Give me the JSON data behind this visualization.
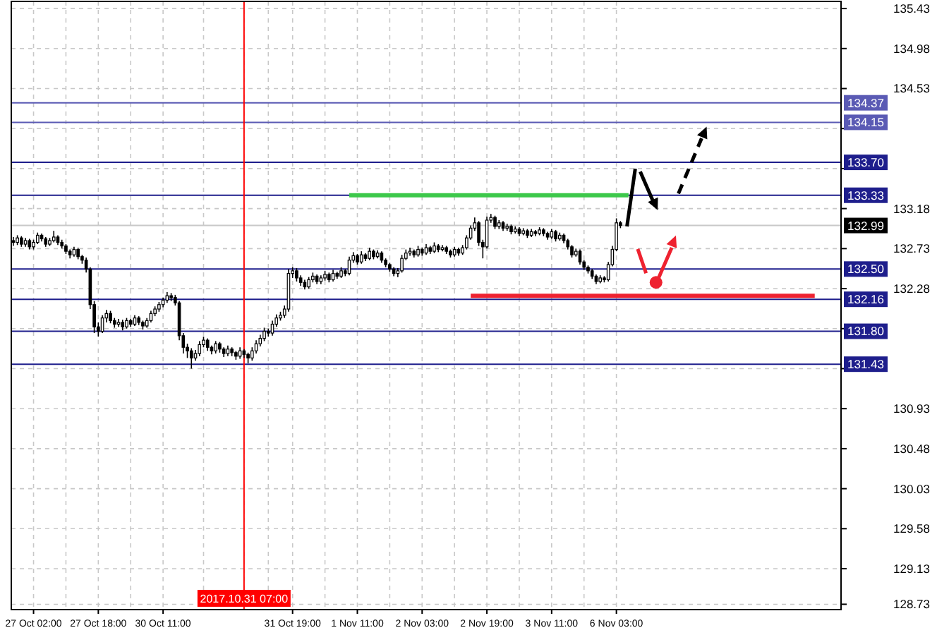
{
  "chart_data": {
    "type": "candlestick",
    "categories": [
      null,
      null,
      null,
      null,
      null,
      "27 Oct 02:00",
      null,
      null,
      null,
      null,
      null,
      null,
      null,
      null,
      null,
      null,
      null,
      null,
      null,
      null,
      null,
      "27 Oct 18:00",
      null,
      null,
      null,
      null,
      null,
      null,
      null,
      null,
      null,
      null,
      null,
      null,
      null,
      null,
      null,
      "30 Oct 11:00",
      null,
      null,
      null,
      null,
      null,
      null,
      null,
      null,
      null,
      null,
      null,
      null,
      null,
      null,
      null,
      null,
      null,
      null,
      null,
      "2017.10.31 07:00",
      null,
      null,
      null,
      null,
      null,
      null,
      null,
      null,
      null,
      null,
      null,
      "31 Oct 19:00",
      null,
      null,
      null,
      null,
      null,
      null,
      null,
      null,
      null,
      null,
      null,
      null,
      null,
      null,
      null,
      "1 Nov 11:00",
      null,
      null,
      null,
      null,
      null,
      null,
      null,
      null,
      null,
      null,
      null,
      null,
      null,
      null,
      null,
      "2 Nov 03:00",
      null,
      null,
      null,
      null,
      null,
      null,
      null,
      null,
      null,
      null,
      null,
      null,
      null,
      null,
      null,
      "2 Nov 19:00",
      null,
      null,
      null,
      null,
      null,
      null,
      null,
      null,
      null,
      null,
      null,
      null,
      null,
      null,
      null,
      "3 Nov 11:00",
      null,
      null,
      null,
      null,
      null,
      null,
      null,
      null,
      null,
      null,
      null,
      null,
      null,
      null,
      null,
      "6 Nov 03:00",
      null,
      null,
      null,
      null,
      null,
      null,
      null,
      null,
      null,
      null,
      null,
      null,
      null,
      null,
      null,
      null,
      null,
      null,
      null,
      null,
      null,
      null,
      null,
      null,
      null,
      null,
      null,
      null,
      null,
      null,
      null,
      null,
      null,
      null,
      null,
      null,
      null,
      null,
      null,
      null,
      null,
      null,
      null,
      null,
      null,
      null,
      null,
      null,
      null,
      null,
      null,
      null,
      null,
      null,
      null
    ],
    "ohlc": [
      [
        132.82,
        132.86,
        132.76,
        132.8
      ],
      [
        132.8,
        132.88,
        132.77,
        132.85
      ],
      [
        132.85,
        132.87,
        132.75,
        132.78
      ],
      [
        132.78,
        132.85,
        132.75,
        132.82
      ],
      [
        132.82,
        132.84,
        132.72,
        132.75
      ],
      [
        132.75,
        132.83,
        132.72,
        132.8
      ],
      [
        132.8,
        132.91,
        132.78,
        132.88
      ],
      [
        132.88,
        132.9,
        132.81,
        132.84
      ],
      [
        132.84,
        132.86,
        132.75,
        132.78
      ],
      [
        132.78,
        132.85,
        132.76,
        132.82
      ],
      [
        132.82,
        132.93,
        132.8,
        132.86
      ],
      [
        132.86,
        132.88,
        132.77,
        132.8
      ],
      [
        132.8,
        132.83,
        132.73,
        132.76
      ],
      [
        132.76,
        132.78,
        132.67,
        132.7
      ],
      [
        132.7,
        132.72,
        132.62,
        132.66
      ],
      [
        132.66,
        132.75,
        132.64,
        132.72
      ],
      [
        132.72,
        132.74,
        132.61,
        132.64
      ],
      [
        132.64,
        132.66,
        132.56,
        132.6
      ],
      [
        132.6,
        132.63,
        132.46,
        132.5
      ],
      [
        132.5,
        132.52,
        132.05,
        132.1
      ],
      [
        132.1,
        132.14,
        131.78,
        131.85
      ],
      [
        131.85,
        131.9,
        131.74,
        131.8
      ],
      [
        131.8,
        131.98,
        131.78,
        131.95
      ],
      [
        131.95,
        132.04,
        131.9,
        132.0
      ],
      [
        132.0,
        132.03,
        131.89,
        131.92
      ],
      [
        131.92,
        131.95,
        131.84,
        131.88
      ],
      [
        131.88,
        131.94,
        131.85,
        131.9
      ],
      [
        131.9,
        131.93,
        131.81,
        131.85
      ],
      [
        131.85,
        131.95,
        131.83,
        131.92
      ],
      [
        131.92,
        131.94,
        131.85,
        131.88
      ],
      [
        131.88,
        131.98,
        131.86,
        131.95
      ],
      [
        131.95,
        131.97,
        131.87,
        131.9
      ],
      [
        131.9,
        131.92,
        131.82,
        131.86
      ],
      [
        131.86,
        131.95,
        131.84,
        131.92
      ],
      [
        131.92,
        132.03,
        131.9,
        132.0
      ],
      [
        132.0,
        132.08,
        131.97,
        132.05
      ],
      [
        132.05,
        132.13,
        132.02,
        132.1
      ],
      [
        132.1,
        132.18,
        132.07,
        132.15
      ],
      [
        132.15,
        132.24,
        132.12,
        132.2
      ],
      [
        132.2,
        132.23,
        132.14,
        132.18
      ],
      [
        132.18,
        132.21,
        132.09,
        132.12
      ],
      [
        132.12,
        132.14,
        131.7,
        131.75
      ],
      [
        131.75,
        131.78,
        131.55,
        131.62
      ],
      [
        131.62,
        131.66,
        131.5,
        131.58
      ],
      [
        131.58,
        131.61,
        131.38,
        131.5
      ],
      [
        131.5,
        131.59,
        131.47,
        131.55
      ],
      [
        131.55,
        131.69,
        131.52,
        131.65
      ],
      [
        131.65,
        131.74,
        131.62,
        131.7
      ],
      [
        131.7,
        131.72,
        131.58,
        131.62
      ],
      [
        131.62,
        131.64,
        131.54,
        131.58
      ],
      [
        131.58,
        131.69,
        131.55,
        131.66
      ],
      [
        131.66,
        131.68,
        131.56,
        131.6
      ],
      [
        131.6,
        131.62,
        131.51,
        131.55
      ],
      [
        131.55,
        131.64,
        131.52,
        131.6
      ],
      [
        131.6,
        131.62,
        131.52,
        131.56
      ],
      [
        131.56,
        131.58,
        131.48,
        131.52
      ],
      [
        131.52,
        131.62,
        131.49,
        131.58
      ],
      [
        131.58,
        131.6,
        131.5,
        131.54
      ],
      [
        131.54,
        131.56,
        131.44,
        131.5
      ],
      [
        131.5,
        131.62,
        131.47,
        131.58
      ],
      [
        131.58,
        131.7,
        131.55,
        131.66
      ],
      [
        131.66,
        131.76,
        131.63,
        131.72
      ],
      [
        131.72,
        131.84,
        131.69,
        131.8
      ],
      [
        131.8,
        131.83,
        131.74,
        131.78
      ],
      [
        131.78,
        131.92,
        131.75,
        131.88
      ],
      [
        131.88,
        131.99,
        131.85,
        131.95
      ],
      [
        131.95,
        132.02,
        131.92,
        131.98
      ],
      [
        131.98,
        132.09,
        131.95,
        132.05
      ],
      [
        132.05,
        132.5,
        132.02,
        132.45
      ],
      [
        132.45,
        132.52,
        132.4,
        132.48
      ],
      [
        132.48,
        132.51,
        132.36,
        132.4
      ],
      [
        132.4,
        132.43,
        132.31,
        132.35
      ],
      [
        132.35,
        132.38,
        132.27,
        132.3
      ],
      [
        132.3,
        132.41,
        132.28,
        132.38
      ],
      [
        132.38,
        132.46,
        132.35,
        132.42
      ],
      [
        132.42,
        132.44,
        132.33,
        132.36
      ],
      [
        132.36,
        132.43,
        132.33,
        132.4
      ],
      [
        132.4,
        132.48,
        132.37,
        132.44
      ],
      [
        132.44,
        132.46,
        132.35,
        132.38
      ],
      [
        132.38,
        132.49,
        132.36,
        132.45
      ],
      [
        132.45,
        132.47,
        132.39,
        132.42
      ],
      [
        132.42,
        132.52,
        132.4,
        132.48
      ],
      [
        132.48,
        132.5,
        132.42,
        132.45
      ],
      [
        132.45,
        132.64,
        132.43,
        132.6
      ],
      [
        132.6,
        132.69,
        132.57,
        132.65
      ],
      [
        132.65,
        132.67,
        132.55,
        132.58
      ],
      [
        132.58,
        132.7,
        132.56,
        132.66
      ],
      [
        132.66,
        132.68,
        132.59,
        132.62
      ],
      [
        132.62,
        132.74,
        132.6,
        132.7
      ],
      [
        132.7,
        132.72,
        132.61,
        132.64
      ],
      [
        132.64,
        132.71,
        132.62,
        132.68
      ],
      [
        132.68,
        132.7,
        132.57,
        132.6
      ],
      [
        132.6,
        132.62,
        132.52,
        132.55
      ],
      [
        132.55,
        132.57,
        132.47,
        132.5
      ],
      [
        132.5,
        132.52,
        132.42,
        132.45
      ],
      [
        132.45,
        132.51,
        132.41,
        132.48
      ],
      [
        132.48,
        132.66,
        132.46,
        132.62
      ],
      [
        132.62,
        132.72,
        132.6,
        132.68
      ],
      [
        132.68,
        132.74,
        132.65,
        132.7
      ],
      [
        132.7,
        132.72,
        132.63,
        132.66
      ],
      [
        132.66,
        132.76,
        132.64,
        132.72
      ],
      [
        132.72,
        132.74,
        132.65,
        132.68
      ],
      [
        132.68,
        132.78,
        132.66,
        132.74
      ],
      [
        132.74,
        132.76,
        132.67,
        132.7
      ],
      [
        132.7,
        132.8,
        132.68,
        132.76
      ],
      [
        132.76,
        132.78,
        132.69,
        132.72
      ],
      [
        132.72,
        132.77,
        132.7,
        132.74
      ],
      [
        132.74,
        132.76,
        132.67,
        132.7
      ],
      [
        132.7,
        132.72,
        132.63,
        132.66
      ],
      [
        132.66,
        132.75,
        132.64,
        132.72
      ],
      [
        132.72,
        132.74,
        132.65,
        132.68
      ],
      [
        132.68,
        132.77,
        132.66,
        132.74
      ],
      [
        132.74,
        132.88,
        132.72,
        132.85
      ],
      [
        132.85,
        132.99,
        132.83,
        132.96
      ],
      [
        132.96,
        133.08,
        132.93,
        133.02
      ],
      [
        133.02,
        133.04,
        132.76,
        132.8
      ],
      [
        132.8,
        132.83,
        132.62,
        132.75
      ],
      [
        132.75,
        133.09,
        132.73,
        133.05
      ],
      [
        133.05,
        133.12,
        133.02,
        133.08
      ],
      [
        133.08,
        133.1,
        132.95,
        132.98
      ],
      [
        132.98,
        133.05,
        132.95,
        133.02
      ],
      [
        133.02,
        133.04,
        132.93,
        132.96
      ],
      [
        132.96,
        133.01,
        132.93,
        132.98
      ],
      [
        132.98,
        133.0,
        132.89,
        132.92
      ],
      [
        132.92,
        132.98,
        132.9,
        132.95
      ],
      [
        132.95,
        132.97,
        132.87,
        132.9
      ],
      [
        132.9,
        132.96,
        132.88,
        132.93
      ],
      [
        132.93,
        132.95,
        132.85,
        132.88
      ],
      [
        132.88,
        132.95,
        132.86,
        132.92
      ],
      [
        132.92,
        132.94,
        132.87,
        132.9
      ],
      [
        132.9,
        132.97,
        132.88,
        132.94
      ],
      [
        132.94,
        132.96,
        132.87,
        132.9
      ],
      [
        132.9,
        132.92,
        132.83,
        132.86
      ],
      [
        132.86,
        132.95,
        132.84,
        132.92
      ],
      [
        132.92,
        132.94,
        132.81,
        132.84
      ],
      [
        132.84,
        132.91,
        132.82,
        132.88
      ],
      [
        132.88,
        132.9,
        132.79,
        132.82
      ],
      [
        132.82,
        132.84,
        132.72,
        132.75
      ],
      [
        132.75,
        132.77,
        132.63,
        132.66
      ],
      [
        132.66,
        132.73,
        132.64,
        132.7
      ],
      [
        132.7,
        132.72,
        132.55,
        132.58
      ],
      [
        132.58,
        132.6,
        132.49,
        132.52
      ],
      [
        132.52,
        132.54,
        132.45,
        132.48
      ],
      [
        132.48,
        132.5,
        132.39,
        132.42
      ],
      [
        132.42,
        132.44,
        132.33,
        132.36
      ],
      [
        132.36,
        132.43,
        132.34,
        132.4
      ],
      [
        132.4,
        132.42,
        132.35,
        132.38
      ],
      [
        132.38,
        132.58,
        132.36,
        132.55
      ],
      [
        132.55,
        132.76,
        132.53,
        132.72
      ],
      [
        132.72,
        133.07,
        132.7,
        133.02
      ],
      [
        133.02,
        133.04,
        132.96,
        132.99
      ],
      null,
      null,
      null,
      null,
      null,
      null,
      null,
      null,
      null,
      null,
      null,
      null,
      null,
      null,
      null,
      null,
      null,
      null,
      null,
      null,
      null,
      null,
      null,
      null,
      null,
      null,
      null,
      null,
      null,
      null,
      null,
      null,
      null,
      null,
      null,
      null,
      null,
      null,
      null,
      null,
      null,
      null,
      null,
      null,
      null,
      null,
      null,
      null,
      null,
      null,
      null,
      null,
      null,
      null
    ],
    "series": [
      {
        "type": "line",
        "color": "#3cc84a",
        "values": [
          null,
          null,
          null,
          null,
          null,
          null,
          null,
          null,
          null,
          null,
          null,
          null,
          null,
          null,
          null,
          null,
          null,
          null,
          null,
          null,
          null,
          null,
          null,
          null,
          null,
          null,
          null,
          null,
          null,
          null,
          null,
          null,
          null,
          null,
          null,
          null,
          null,
          null,
          null,
          null,
          null,
          null,
          null,
          null,
          null,
          null,
          null,
          null,
          null,
          null,
          null,
          null,
          null,
          null,
          null,
          null,
          null,
          null,
          null,
          null,
          null,
          null,
          null,
          null,
          null,
          null,
          null,
          null,
          null,
          null,
          null,
          null,
          null,
          null,
          null,
          null,
          null,
          null,
          null,
          null,
          null,
          null,
          null,
          133.33,
          133.33,
          133.33,
          133.33,
          133.33,
          133.33,
          133.33,
          133.33,
          133.33,
          133.33,
          133.33,
          133.33,
          133.33,
          133.33,
          133.33,
          133.33,
          133.33,
          133.33,
          133.33,
          133.33,
          133.33,
          133.33,
          133.33,
          133.33,
          133.33,
          133.33,
          133.33,
          133.33,
          133.33,
          133.33,
          133.33,
          133.33,
          133.33,
          133.33,
          133.33,
          133.33,
          133.33,
          133.33,
          133.33,
          133.33,
          133.33,
          133.33,
          133.33,
          133.33,
          133.33,
          133.33,
          133.33,
          133.33,
          133.33,
          133.33,
          133.33,
          133.33,
          133.33,
          133.33,
          133.33,
          133.33,
          133.33,
          133.33,
          133.33,
          133.33,
          133.33,
          133.33,
          133.33,
          133.33,
          133.33,
          133.33,
          133.33,
          133.33,
          133.33,
          133.33,
          null,
          null,
          null,
          null,
          null,
          null,
          null,
          null,
          null,
          null,
          null,
          null,
          null,
          null,
          null,
          null,
          null,
          null,
          null,
          null,
          null,
          null,
          null,
          null,
          null,
          null,
          null,
          null,
          null,
          null,
          null,
          null,
          null,
          null,
          null,
          null,
          null,
          null,
          null,
          null,
          null,
          null,
          null,
          null,
          null,
          null,
          null,
          null,
          null,
          null,
          null,
          null
        ]
      },
      {
        "type": "line",
        "color": "#ee2230",
        "values": [
          null,
          null,
          null,
          null,
          null,
          null,
          null,
          null,
          null,
          null,
          null,
          null,
          null,
          null,
          null,
          null,
          null,
          null,
          null,
          null,
          null,
          null,
          null,
          null,
          null,
          null,
          null,
          null,
          null,
          null,
          null,
          null,
          null,
          null,
          null,
          null,
          null,
          null,
          null,
          null,
          null,
          null,
          null,
          null,
          null,
          null,
          null,
          null,
          null,
          null,
          null,
          null,
          null,
          null,
          null,
          null,
          null,
          null,
          null,
          null,
          null,
          null,
          null,
          null,
          null,
          null,
          null,
          null,
          null,
          null,
          null,
          null,
          null,
          null,
          null,
          null,
          null,
          null,
          null,
          null,
          null,
          null,
          null,
          null,
          null,
          null,
          null,
          null,
          null,
          null,
          null,
          null,
          null,
          null,
          null,
          null,
          null,
          null,
          null,
          null,
          null,
          null,
          null,
          null,
          null,
          null,
          null,
          null,
          null,
          null,
          null,
          null,
          null,
          132.2,
          132.2,
          132.2,
          132.2,
          132.2,
          132.2,
          132.2,
          132.2,
          132.2,
          132.2,
          132.2,
          132.2,
          132.2,
          132.2,
          132.2,
          132.2,
          132.2,
          132.2,
          132.2,
          132.2,
          132.2,
          132.2,
          132.2,
          132.2,
          132.2,
          132.2,
          132.2,
          132.2,
          132.2,
          132.2,
          132.2,
          132.2,
          132.2,
          132.2,
          132.2,
          132.2,
          132.2,
          132.2,
          132.2,
          132.2,
          132.2,
          132.2,
          132.2,
          132.2,
          132.2,
          132.2,
          132.2,
          132.2,
          132.2,
          132.2,
          132.2,
          132.2,
          132.2,
          132.2,
          132.2,
          132.2,
          132.2,
          132.2,
          132.2,
          132.2,
          132.2,
          132.2,
          132.2,
          132.2,
          132.2,
          132.2,
          132.2,
          132.2,
          132.2,
          132.2,
          132.2,
          132.2,
          132.2,
          132.2,
          132.2,
          132.2,
          132.2,
          132.2,
          132.2,
          132.2,
          132.2,
          132.2,
          132.2,
          132.2,
          132.2,
          132.2,
          null,
          null,
          null,
          null,
          null,
          null
        ]
      }
    ],
    "ylim": [
      128.67,
      135.51
    ],
    "yticks": [
      135.43,
      134.98,
      134.53,
      {
        "value": 134.08,
        "label": null
      },
      {
        "value": 133.63,
        "label": null
      },
      133.18,
      132.73,
      132.28,
      {
        "value": 131.83,
        "label": null
      },
      {
        "value": 131.38,
        "label": null
      },
      130.93,
      130.48,
      130.03,
      129.58,
      129.13,
      128.73
    ],
    "grid": true,
    "ref_lines": [
      {
        "axis": "y",
        "value": 134.37,
        "label": "134.37",
        "color": "#5a5ab4"
      },
      {
        "axis": "y",
        "value": 134.15,
        "label": "134.15",
        "color": "#5a5ab4"
      },
      {
        "axis": "y",
        "value": 133.7,
        "label": "133.70",
        "color": "#1e1e8c"
      },
      {
        "axis": "y",
        "value": 133.33,
        "label": "133.33",
        "color": "#1e1e8c"
      },
      {
        "axis": "y",
        "value": 132.99,
        "label": "132.99",
        "color": "#c8c8c8"
      },
      {
        "axis": "y",
        "value": 132.5,
        "label": "132.50",
        "color": "#1e1e8c"
      },
      {
        "axis": "y",
        "value": 132.16,
        "label": "132.16",
        "color": "#1e1e8c"
      },
      {
        "axis": "y",
        "value": 131.8,
        "label": "131.80",
        "color": "#1e1e8c"
      },
      {
        "axis": "y",
        "value": 131.43,
        "label": "131.43",
        "color": "#1e1e8c"
      },
      {
        "axis": "x",
        "value": "2017.10.31 07:00",
        "color": "#ff0000"
      }
    ]
  }
}
